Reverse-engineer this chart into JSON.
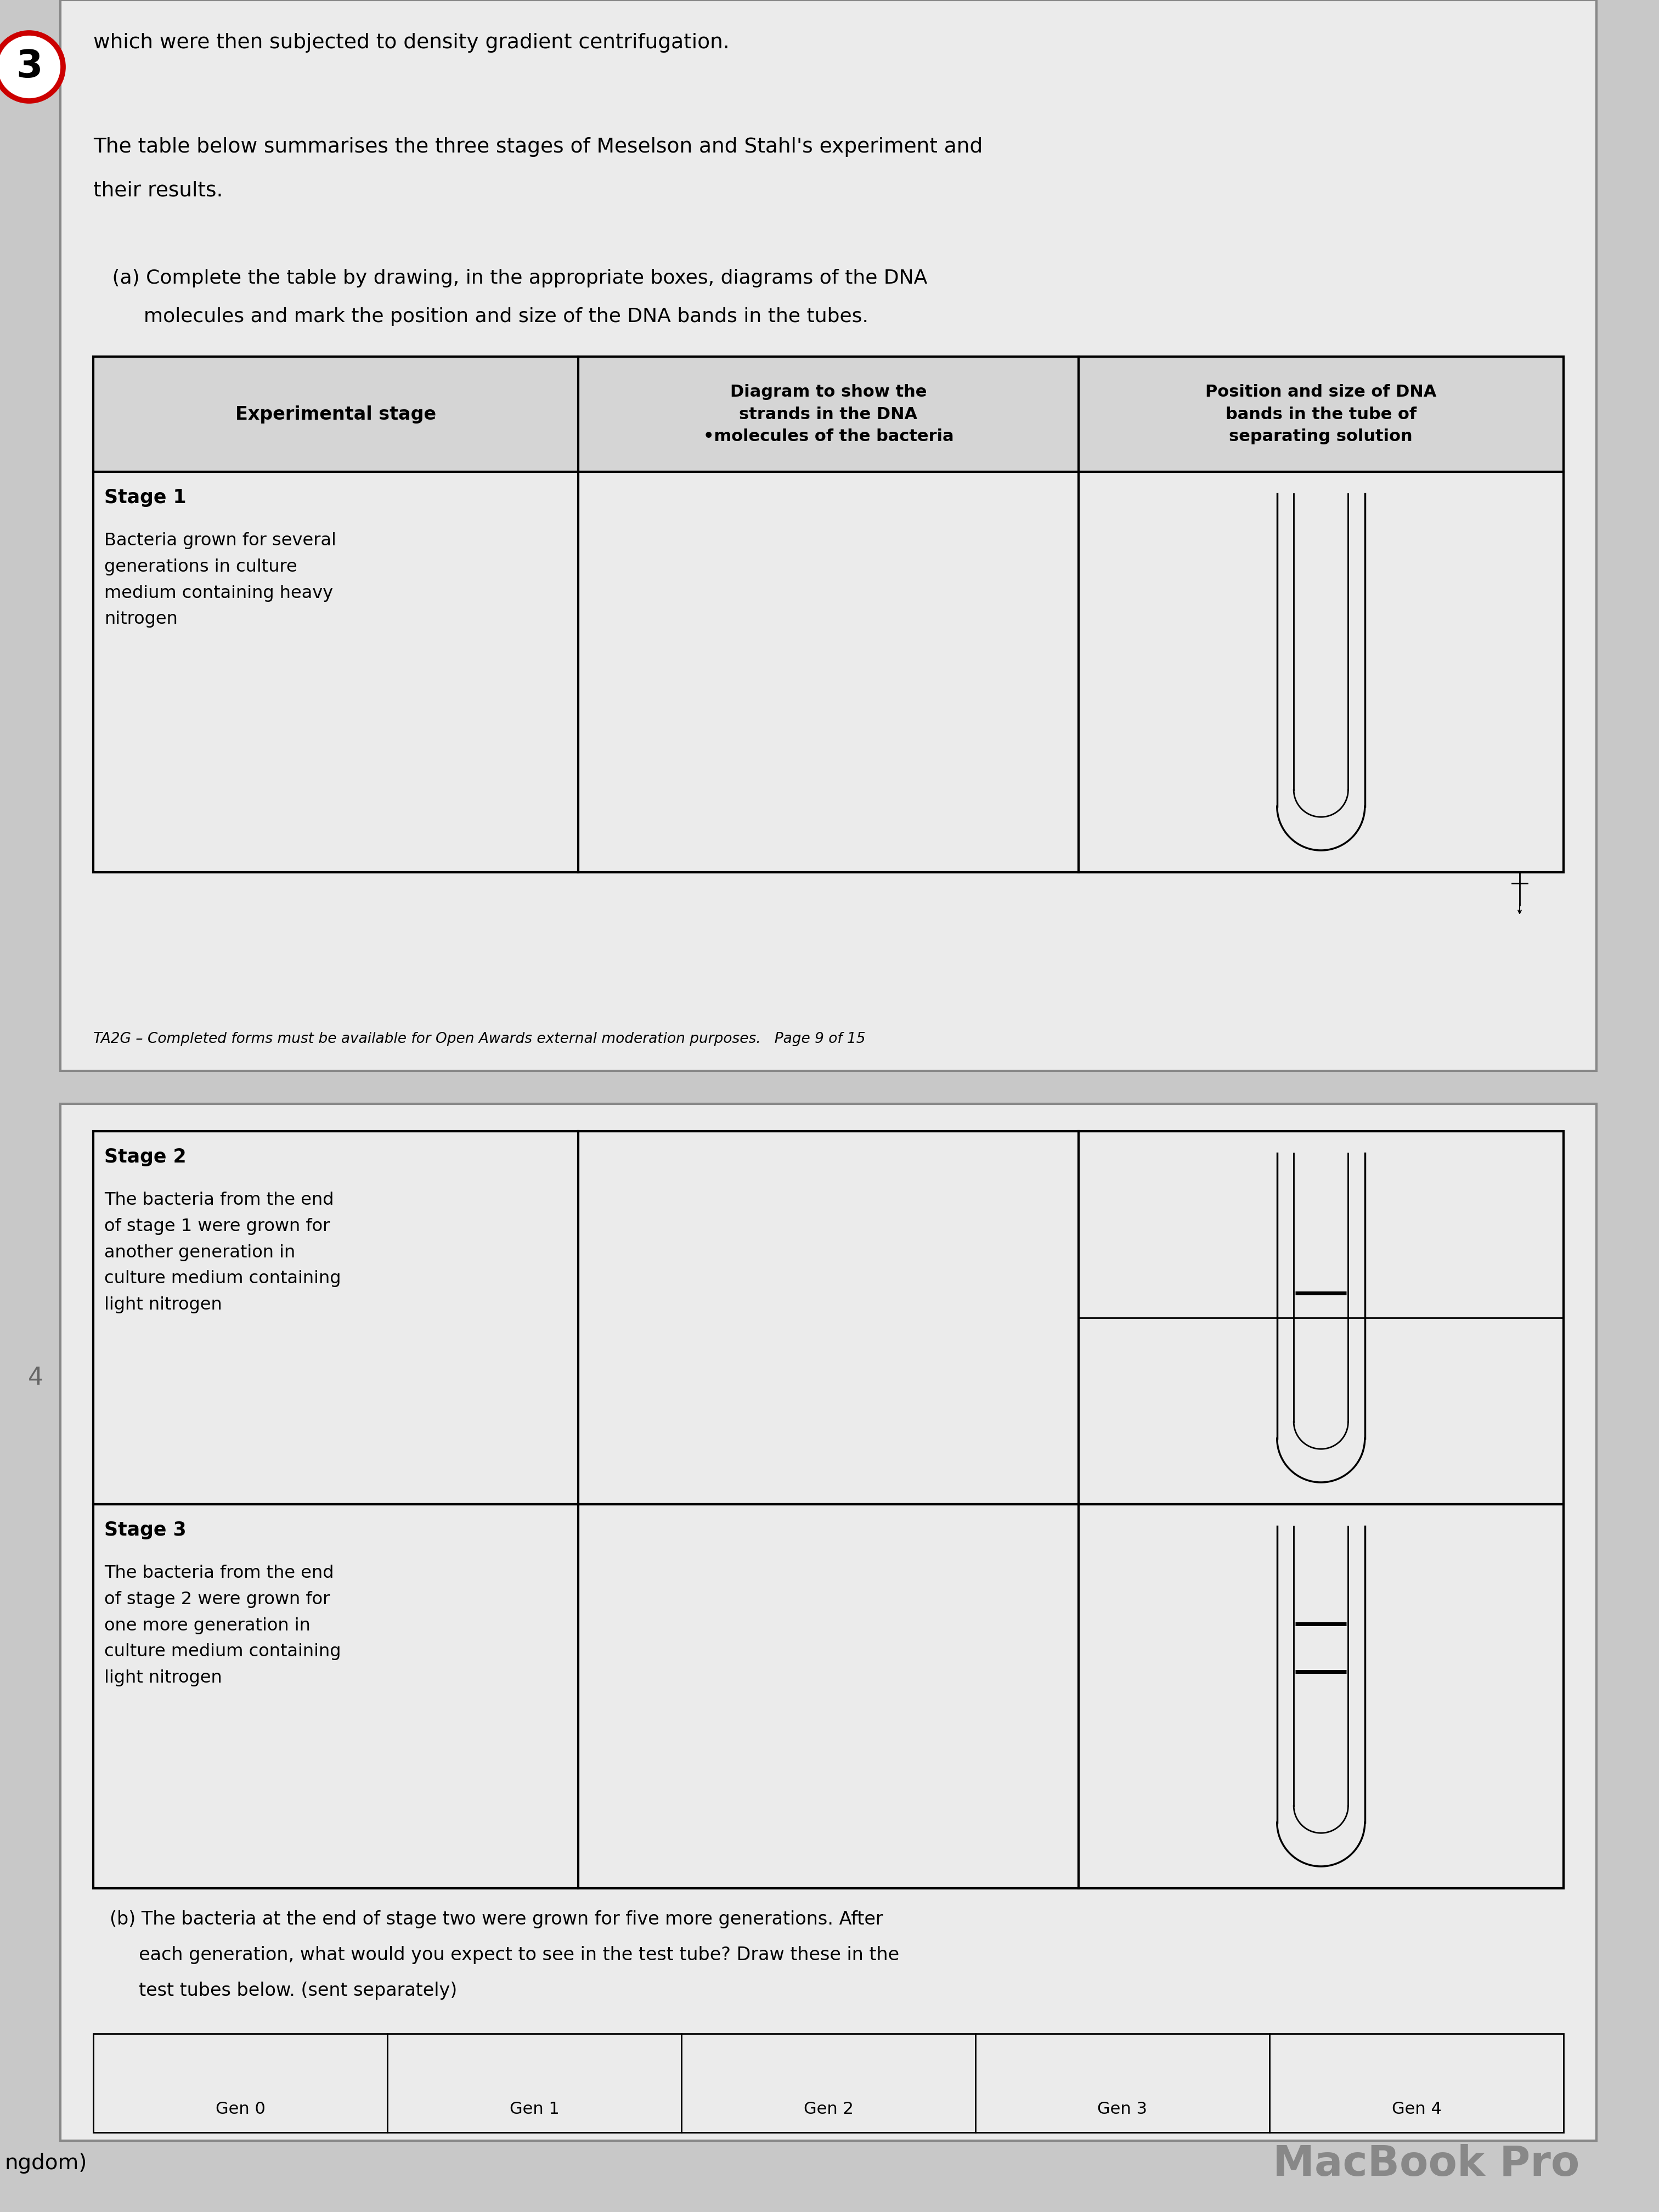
{
  "bg_color": "#c8c8c8",
  "page_bg": "#ebebeb",
  "question_number": "3",
  "intro_text_line1": "which were then subjected to density gradient centrifugation.",
  "para_text1": "The table below summarises the three stages of Meselson and Stahl's experiment and",
  "para_text2": "their results.",
  "instruction_text1": "   (a) Complete the table by drawing, in the appropriate boxes, diagrams of the DNA",
  "instruction_text2": "        molecules and mark the position and size of the DNA bands in the tubes.",
  "col_header0": "Experimental stage",
  "col_header1": "Diagram to show the\nstrands in the DNA\n•molecules of the bacteria",
  "col_header2": "Position and size of DNA\nbands in the tube of\nseparating solution",
  "stage1_label": "Stage 1",
  "stage1_text": "Bacteria grown for several\ngenerations in culture\nmedium containing heavy\nnitrogen",
  "stage2_label": "Stage 2",
  "stage2_text": "The bacteria from the end\nof stage 1 were grown for\nanother generation in\nculture medium containing\nlight nitrogen",
  "stage3_label": "Stage 3",
  "stage3_text": "The bacteria from the end\nof stage 2 were grown for\none more generation in\nculture medium containing\nlight nitrogen",
  "footer_text": "TA2G – Completed forms must be available for Open Awards external moderation purposes.   Page 9 of 15",
  "part_b_line1": "(b) The bacteria at the end of stage two were grown for five more generations. After",
  "part_b_line2": "     each generation, what would you expect to see in the test tube? Draw these in the",
  "part_b_line3": "     test tubes below. (sent separately)",
  "gen_labels": [
    "Gen 0",
    "Gen 1",
    "Gen 2",
    "Gen 3",
    "Gen 4"
  ],
  "bottom_left_text": "ngdom)",
  "macbook_text": "MacBook Pro",
  "num_label": "4"
}
